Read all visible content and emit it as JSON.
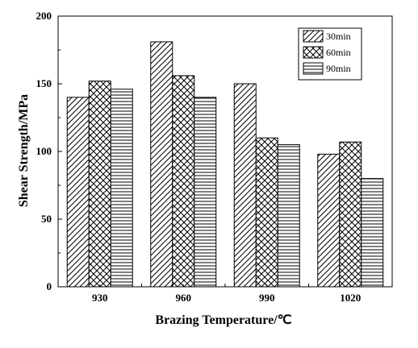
{
  "chart_data": {
    "type": "bar",
    "xlabel": "Brazing Temperature/℃",
    "ylabel": "Shear Strength/MPa",
    "categories": [
      "930",
      "960",
      "990",
      "1020"
    ],
    "ylim": [
      0,
      200
    ],
    "yticks": [
      0,
      50,
      100,
      150,
      200
    ],
    "series": [
      {
        "name": "30min",
        "pattern": "diagonal-hatch",
        "values": [
          140,
          181,
          150,
          98
        ]
      },
      {
        "name": "60min",
        "pattern": "cross-hatch",
        "values": [
          152,
          156,
          110,
          107
        ]
      },
      {
        "name": "90min",
        "pattern": "horizontal-lines",
        "values": [
          146,
          140,
          105,
          80
        ]
      }
    ],
    "legend_position": "top-right",
    "grid": false
  }
}
